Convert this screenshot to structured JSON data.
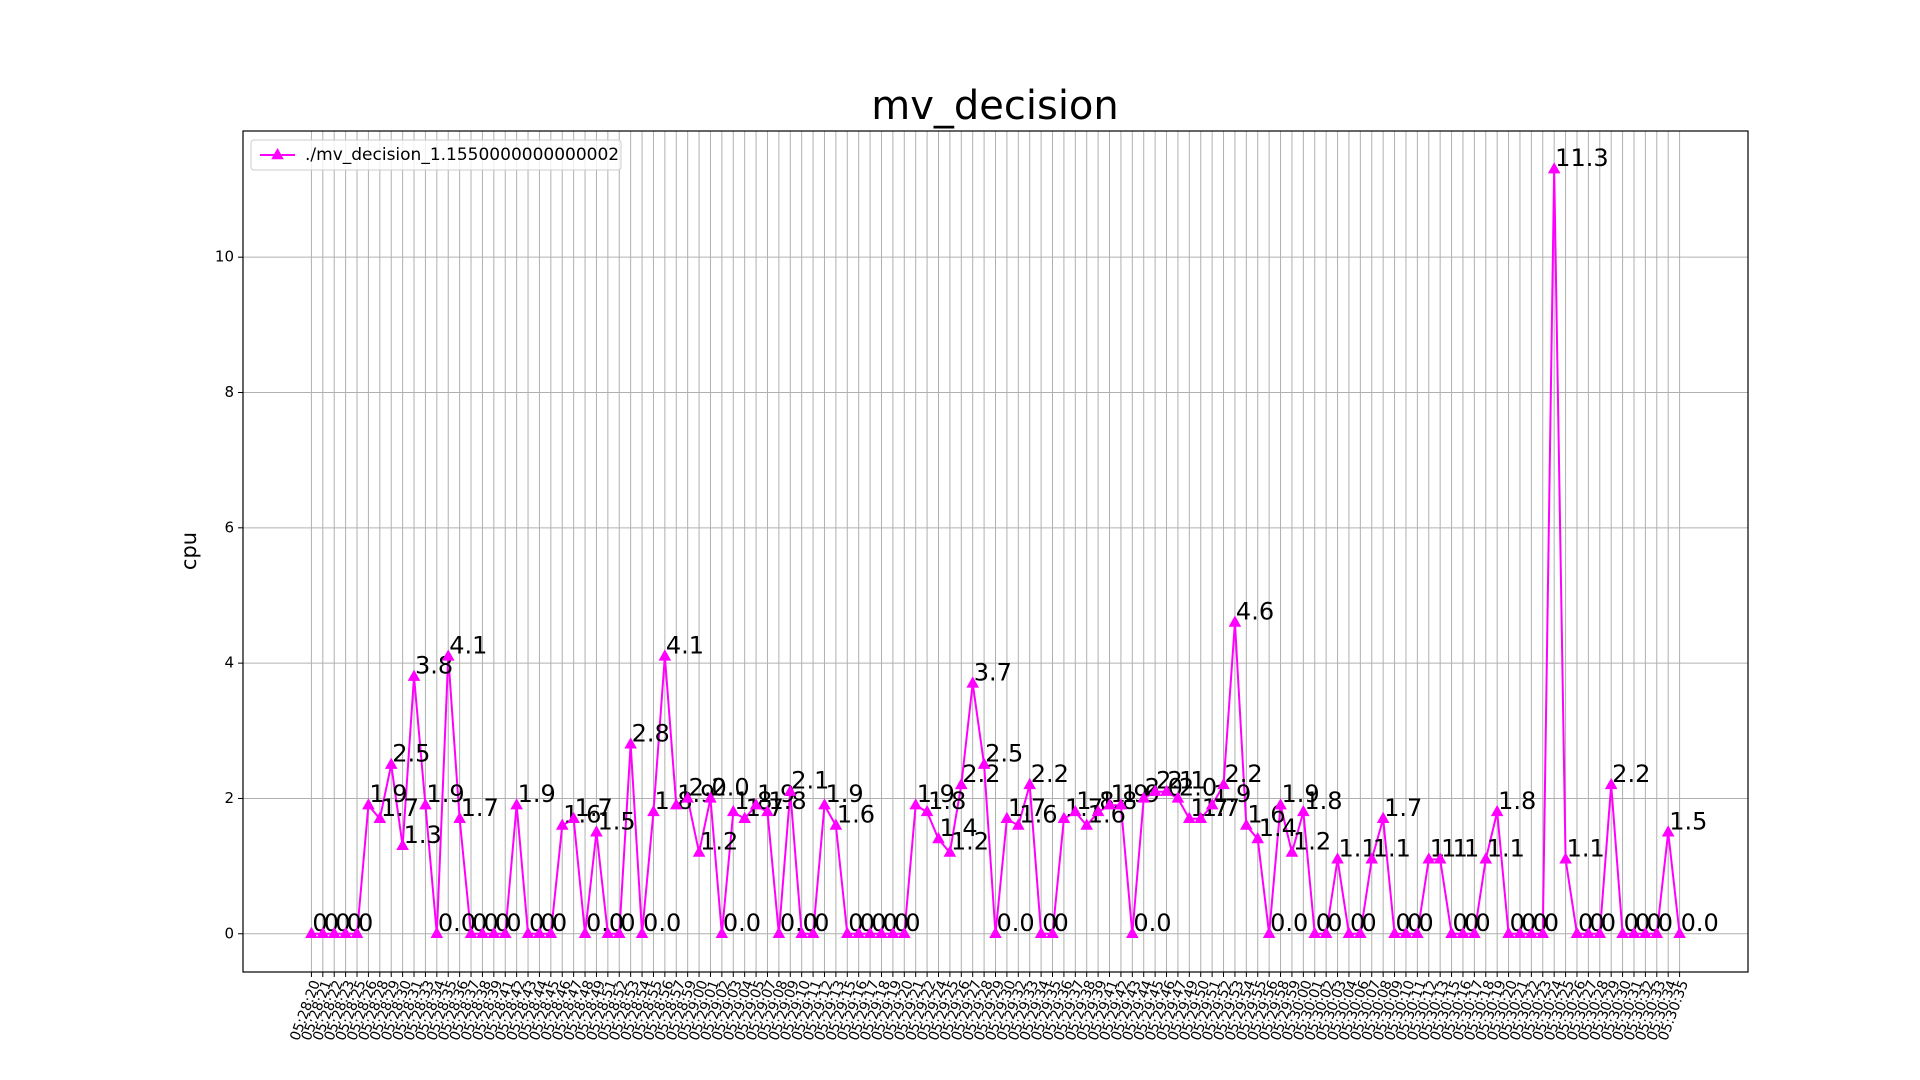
{
  "chart_data": {
    "type": "line",
    "title": "mv_decision",
    "y_label": "cpu",
    "legend": "upper left",
    "grid": true,
    "xlim": [
      -6,
      126
    ],
    "ylim": [
      -0.565,
      11.865
    ],
    "yticks": [
      0,
      2,
      4,
      6,
      8,
      10
    ],
    "categories": [
      "05:28:20",
      "05:28:21",
      "05:28:22",
      "05:28:23",
      "05:28:25",
      "05:28:26",
      "05:28:28",
      "05:28:29",
      "05:28:30",
      "05:28:31",
      "05:28:33",
      "05:28:34",
      "05:28:35",
      "05:28:36",
      "05:28:37",
      "05:28:38",
      "05:28:39",
      "05:28:41",
      "05:28:42",
      "05:28:43",
      "05:28:44",
      "05:28:45",
      "05:28:46",
      "05:28:47",
      "05:28:48",
      "05:28:49",
      "05:28:51",
      "05:28:52",
      "05:28:53",
      "05:28:54",
      "05:28:55",
      "05:28:56",
      "05:28:57",
      "05:28:59",
      "05:29:00",
      "05:29:01",
      "05:29:02",
      "05:29:03",
      "05:29:04",
      "05:29:05",
      "05:29:07",
      "05:29:08",
      "05:29:09",
      "05:29:10",
      "05:29:11",
      "05:29:12",
      "05:29:13",
      "05:29:15",
      "05:29:16",
      "05:29:17",
      "05:29:18",
      "05:29:19",
      "05:29:20",
      "05:29:21",
      "05:29:22",
      "05:29:24",
      "05:29:25",
      "05:29:26",
      "05:29:27",
      "05:29:28",
      "05:29:29",
      "05:29:30",
      "05:29:32",
      "05:29:33",
      "05:29:34",
      "05:29:35",
      "05:29:36",
      "05:29:37",
      "05:29:38",
      "05:29:39",
      "05:29:41",
      "05:29:42",
      "05:29:43",
      "05:29:44",
      "05:29:45",
      "05:29:46",
      "05:29:47",
      "05:29:49",
      "05:29:50",
      "05:29:51",
      "05:29:52",
      "05:29:53",
      "05:29:54",
      "05:29:55",
      "05:29:56",
      "05:29:58",
      "05:29:59",
      "05:30:00",
      "05:30:01",
      "05:30:02",
      "05:30:03",
      "05:30:04",
      "05:30:06",
      "05:30:07",
      "05:30:08",
      "05:30:09",
      "05:30:10",
      "05:30:11",
      "05:30:12",
      "05:30:13",
      "05:30:15",
      "05:30:16",
      "05:30:17",
      "05:30:18",
      "05:30:19",
      "05:30:20",
      "05:30:21",
      "05:30:22",
      "05:30:23",
      "05:30:24",
      "05:30:25",
      "05:30:26",
      "05:30:27",
      "05:30:28",
      "05:30:29",
      "05:30:30",
      "05:30:31",
      "05:30:32",
      "05:30:33",
      "05:30:34",
      "05:30:35"
    ],
    "series": [
      {
        "name": "./mv_decision_1.1550000000000002",
        "color": "#ff00ff",
        "marker": "triangle",
        "values": [
          0,
          0,
          0,
          0,
          0,
          1.9,
          1.7,
          2.5,
          1.3,
          3.8,
          1.9,
          0,
          4.1,
          1.7,
          0,
          0,
          0,
          0,
          1.9,
          0,
          0,
          0,
          1.6,
          1.7,
          0,
          1.5,
          0,
          0,
          2.8,
          0,
          1.8,
          4.1,
          1.9,
          2.0,
          1.2,
          2.0,
          0,
          1.8,
          1.7,
          1.9,
          1.8,
          0,
          2.1,
          0,
          0,
          1.9,
          1.6,
          0,
          0,
          0,
          0,
          0,
          0,
          1.9,
          1.8,
          1.4,
          1.2,
          2.2,
          3.7,
          2.5,
          0,
          1.7,
          1.6,
          2.2,
          0,
          0,
          1.7,
          1.8,
          1.6,
          1.8,
          1.9,
          1.9,
          0,
          2.0,
          2.1,
          2.1,
          2.0,
          1.7,
          1.7,
          1.9,
          2.2,
          4.6,
          1.6,
          1.4,
          0,
          1.9,
          1.2,
          1.8,
          0,
          0,
          1.1,
          0,
          0,
          1.1,
          1.7,
          0,
          0,
          0,
          1.1,
          1.1,
          0,
          0,
          0,
          1.1,
          1.8,
          0,
          0,
          0,
          0,
          11.3,
          1.1,
          0,
          0,
          0,
          2.2,
          0,
          0,
          0,
          0,
          1.5,
          0
        ],
        "value_labels": [
          "0",
          "0",
          "0",
          "0",
          "0",
          "1.9",
          "1.7",
          "2.5",
          "1.3",
          "3.8",
          "1.9",
          "0.0",
          "4.1",
          "1.7",
          "0",
          "0",
          "0",
          "0",
          "1.9",
          "0",
          "0",
          "0",
          "1.6",
          "1.7",
          "0.0",
          "1.5",
          "0",
          "0",
          "2.8",
          "0.0",
          "1.8",
          "4.1",
          "1.9",
          "2.0",
          "1.2",
          "2.0",
          "0.0",
          "1.8",
          "1.7",
          "1.9",
          "1.8",
          "0.0",
          "2.1",
          "0",
          "0",
          "1.9",
          "1.6",
          "0",
          "0",
          "0",
          "0",
          "0",
          "0",
          "1.9",
          "1.8",
          "1.4",
          "1.2",
          "2.2",
          "3.7",
          "2.5",
          "0.0",
          "1.7",
          "1.6",
          "2.2",
          "0",
          "0",
          "1.7",
          "1.8",
          "1.6",
          "1.8",
          "1.9",
          "1.9",
          "0.0",
          "2.0",
          "2.1",
          "2.1",
          "2.0",
          "1.7",
          "1.7",
          "1.9",
          "2.2",
          "4.6",
          "1.6",
          "1.4",
          "0.0",
          "1.9",
          "1.2",
          "1.8",
          "0",
          "0",
          "1.1",
          "0",
          "0",
          "1.1",
          "1.7",
          "0",
          "0",
          "0",
          "1.1",
          "1.1",
          "0",
          "0",
          "0",
          "1.1",
          "1.8",
          "0",
          "0",
          "0",
          "0",
          "11.3",
          "1.1",
          "0",
          "0",
          "0",
          "2.2",
          "0",
          "0",
          "0",
          "0",
          "1.5",
          "0.0"
        ]
      }
    ]
  }
}
